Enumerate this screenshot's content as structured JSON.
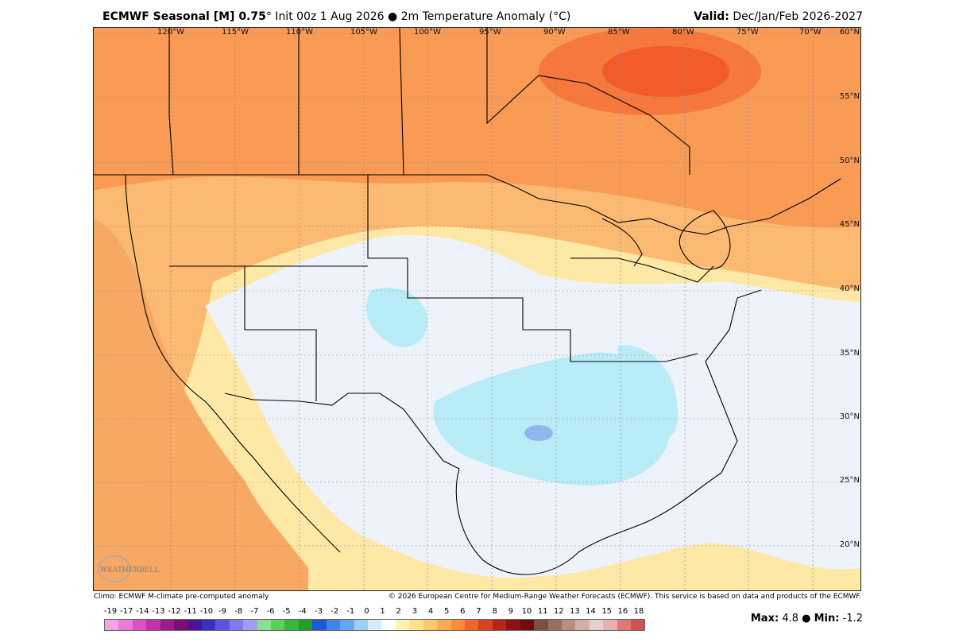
{
  "header": {
    "title_bold": "ECMWF Seasonal [M] 0.75",
    "title_rest": "° Init 00z 1 Aug 2026 ● 2m Temperature Anomaly (°C)",
    "valid_label": "Valid:",
    "valid_value": "Dec/Jan/Feb 2026-2027"
  },
  "longitudes": [
    "120°W",
    "115°W",
    "110°W",
    "105°W",
    "100°W",
    "95°W",
    "90°W",
    "85°W",
    "80°W",
    "75°W",
    "70°W"
  ],
  "latitudes": [
    "60°N",
    "55°N",
    "50°N",
    "45°N",
    "40°N",
    "35°N",
    "30°N",
    "25°N",
    "20°N"
  ],
  "footer": {
    "climo": "Climo: ECMWF M-climate pre-computed anomaly",
    "copyright": "© 2026 European Centre for Medium-Range Weather Forecasts (ECMWF). This service is based on data and products of the ECMWF."
  },
  "logo_text": "WEATHERBELL",
  "colorbar": {
    "labels": [
      "-19",
      "-17",
      "-14",
      "-13",
      "-12",
      "-11",
      "-10",
      "-9",
      "-8",
      "-7",
      "-6",
      "-5",
      "-4",
      "-3",
      "-2",
      "-1",
      "0",
      "1",
      "2",
      "3",
      "4",
      "5",
      "6",
      "7",
      "8",
      "9",
      "10",
      "11",
      "12",
      "13",
      "14",
      "15",
      "16",
      "18"
    ],
    "colors": [
      "#f5a3e6",
      "#ee7ad8",
      "#e04fc5",
      "#c42ea8",
      "#9c1a8a",
      "#7a0f73",
      "#4b1399",
      "#3a2fc0",
      "#5a55e0",
      "#7f7bee",
      "#9fa0f3",
      "#88e08a",
      "#5ccf5e",
      "#36b83a",
      "#1f9e2a",
      "#2158d6",
      "#3d86ea",
      "#63a9f2",
      "#9ed0f7",
      "#d4edfb",
      "#ffffff",
      "#fff3b0",
      "#ffe38a",
      "#ffc86b",
      "#ffab4f",
      "#ff8a3a",
      "#f2652a",
      "#d8431f",
      "#b8241a",
      "#8e1212",
      "#6e0d0d",
      "#7a5040",
      "#9c6e5c",
      "#b88e80",
      "#d4b0a6",
      "#e8d0ca",
      "#e8b0b0",
      "#e07a7a",
      "#d45050"
    ]
  },
  "stats": {
    "max_label": "Max:",
    "max_value": "4.8",
    "sep": "●",
    "min_label": "Min:",
    "min_value": "-1.2"
  }
}
